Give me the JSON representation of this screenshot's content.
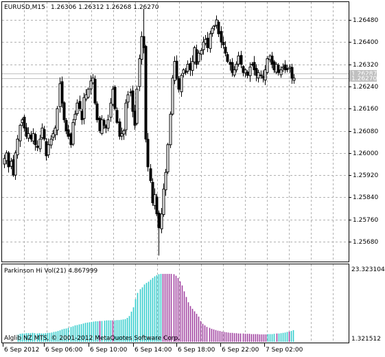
{
  "header": {
    "symbol": "EURUSD,M15",
    "ohlc": "1.26306 1.26312 1.26268 1.26270"
  },
  "indicator": {
    "title": "Parkinson Hi Vol(21) 4.867999",
    "axis_top": "23.323104",
    "axis_bottom": "1.321512"
  },
  "copyright": "Alglib NZ MTS, © 2001-2012 MetaQuotes Software Corp.",
  "price_labels": {
    "bid": "1.26287",
    "ask": "1.26270"
  },
  "colors": {
    "background": "#ffffff",
    "grid": "#b0b0b0",
    "candle": "#000000",
    "histogram_cyan": "#33cccc",
    "histogram_purple": "#a040a0",
    "price_line": "#c0c0c0",
    "price_tag_bg": "#c0c0c0"
  },
  "chart_data": [
    {
      "type": "candlestick",
      "timeframe": "M15",
      "yticks": [
        "1.26480",
        "1.26400",
        "1.26320",
        "1.26240",
        "1.26160",
        "1.26080",
        "1.26000",
        "1.25920",
        "1.25840",
        "1.25760",
        "1.25680"
      ],
      "ylim": [
        1.2562,
        1.2654
      ],
      "xticks": [
        "6 Sep 2012",
        "6 Sep 06:00",
        "6 Sep 10:00",
        "6 Sep 14:00",
        "6 Sep 18:00",
        "6 Sep 22:00",
        "7 Sep 02:00"
      ],
      "current_bid": 1.26287,
      "current_ask": 1.2627,
      "grid": true,
      "closes": [
        1.2598,
        1.26,
        1.2595,
        1.2597,
        1.2592,
        1.26,
        1.2605,
        1.261,
        1.2612,
        1.2609,
        1.2606,
        1.2607,
        1.2605,
        1.2607,
        1.2603,
        1.2602,
        1.2605,
        1.2609,
        1.2605,
        1.2599,
        1.2603,
        1.2605,
        1.2607,
        1.2609,
        1.2616,
        1.2625,
        1.2618,
        1.2612,
        1.2608,
        1.2606,
        1.2603,
        1.2611,
        1.2614,
        1.2618,
        1.2616,
        1.2612,
        1.262,
        1.2621,
        1.2623,
        1.2626,
        1.2627,
        1.2618,
        1.2612,
        1.2608,
        1.2612,
        1.261,
        1.2609,
        1.2612,
        1.2618,
        1.2623,
        1.2616,
        1.2611,
        1.2606,
        1.2607,
        1.2608,
        1.2618,
        1.2621,
        1.2622,
        1.2615,
        1.261,
        1.2623,
        1.2634,
        1.2642,
        1.2638,
        1.2605,
        1.2595,
        1.259,
        1.2582,
        1.2585,
        1.2578,
        1.2573,
        1.2578,
        1.2587,
        1.2593,
        1.2603,
        1.2614,
        1.2627,
        1.2633,
        1.2627,
        1.2623,
        1.2628,
        1.263,
        1.2629,
        1.2632,
        1.263,
        1.2633,
        1.2638,
        1.2632,
        1.2636,
        1.2637,
        1.264,
        1.2641,
        1.2638,
        1.2643,
        1.2645,
        1.2646,
        1.2648,
        1.2643,
        1.264,
        1.2639,
        1.2636,
        1.2633,
        1.2632,
        1.2629,
        1.263,
        1.2632,
        1.2635,
        1.2632,
        1.2629,
        1.263,
        1.2628,
        1.2631,
        1.2632,
        1.263,
        1.2628,
        1.2629,
        1.2628,
        1.2627,
        1.263,
        1.2634,
        1.2635,
        1.2632,
        1.263,
        1.2632,
        1.2629,
        1.263,
        1.2631,
        1.263,
        1.263,
        1.2631,
        1.2627,
        1.2627
      ]
    },
    {
      "type": "bar",
      "name": "Parkinson Hi Vol(21)",
      "ylim": [
        1.321512,
        23.323104
      ],
      "last_value": 4.867999,
      "values": [
        3.4,
        3.7,
        3.8,
        3.8,
        3.9,
        3.9,
        3.9,
        4.0,
        3.9,
        3.8,
        3.9,
        3.8,
        3.8,
        3.9,
        4.0,
        4.0,
        4.1,
        4.3,
        4.4,
        4.6,
        4.8,
        5.1,
        5.3,
        5.4,
        5.6,
        5.9,
        6.1,
        6.4,
        6.5,
        6.7,
        6.8,
        7.0,
        7.2,
        7.3,
        7.4,
        7.5,
        7.6,
        7.7,
        7.7,
        7.8,
        7.8,
        7.9,
        8.0,
        8.0,
        8.0,
        8.0,
        8.0,
        8.1,
        8.1,
        8.2,
        8.3,
        8.4,
        8.8,
        9.4,
        10.8,
        12.2,
        14.8,
        16.8,
        18.0,
        18.6,
        19.5,
        20.0,
        20.4,
        21.0,
        21.6,
        22.1,
        22.5,
        22.8,
        22.9,
        22.9,
        22.9,
        22.9,
        22.9,
        22.9,
        22.8,
        22.3,
        21.6,
        20.5,
        19.2,
        17.3,
        15.5,
        13.8,
        12.6,
        11.7,
        10.9,
        10.1,
        9.2,
        7.8,
        6.9,
        6.4,
        5.9,
        5.6,
        5.3,
        5.1,
        4.9,
        4.7,
        4.6,
        4.4,
        4.3,
        4.2,
        4.1,
        4.0,
        4.0,
        3.9,
        3.9,
        3.8,
        3.8,
        3.8,
        3.7,
        3.7,
        3.7,
        3.6,
        3.6,
        3.6,
        3.6,
        3.5,
        3.5,
        3.5,
        3.5,
        3.6,
        3.6,
        3.6,
        3.7,
        3.8,
        3.8,
        3.9,
        4.0,
        4.1,
        4.3,
        4.4,
        4.6,
        4.87
      ],
      "colors": [
        "cyan",
        "cyan",
        "cyan",
        "cyan",
        "cyan",
        "cyan",
        "cyan",
        "cyan",
        "cyan",
        "cyan",
        "cyan",
        "cyan",
        "cyan",
        "cyan",
        "cyan",
        "cyan",
        "cyan",
        "cyan",
        "cyan",
        "cyan",
        "cyan",
        "cyan",
        "cyan",
        "cyan",
        "cyan",
        "cyan",
        "cyan",
        "cyan",
        "cyan",
        "cyan",
        "cyan",
        "cyan",
        "cyan",
        "cyan",
        "cyan",
        "cyan",
        "cyan",
        "cyan",
        "cyan",
        "purple",
        "cyan",
        "cyan",
        "cyan",
        "cyan",
        "cyan",
        "purple",
        "cyan",
        "cyan",
        "cyan",
        "cyan",
        "cyan",
        "cyan",
        "cyan",
        "cyan",
        "cyan",
        "cyan",
        "cyan",
        "cyan",
        "cyan",
        "cyan",
        "cyan",
        "cyan",
        "cyan",
        "cyan",
        "cyan",
        "cyan",
        "cyan",
        "cyan",
        "cyan",
        "purple",
        "purple",
        "purple",
        "purple",
        "purple",
        "purple",
        "purple",
        "purple",
        "purple",
        "purple",
        "purple",
        "purple",
        "purple",
        "purple",
        "purple",
        "purple",
        "purple",
        "purple",
        "purple",
        "purple",
        "purple",
        "purple",
        "purple",
        "purple",
        "purple",
        "purple",
        "purple",
        "purple",
        "purple",
        "purple",
        "purple",
        "purple",
        "purple",
        "purple",
        "purple",
        "purple",
        "purple",
        "purple",
        "purple",
        "purple",
        "purple",
        "purple",
        "purple",
        "purple",
        "purple",
        "purple",
        "purple",
        "purple",
        "purple",
        "purple",
        "cyan",
        "cyan",
        "cyan",
        "cyan",
        "purple",
        "cyan",
        "cyan",
        "cyan",
        "cyan",
        "cyan",
        "purple",
        "cyan",
        "cyan",
        "cyan"
      ]
    }
  ]
}
